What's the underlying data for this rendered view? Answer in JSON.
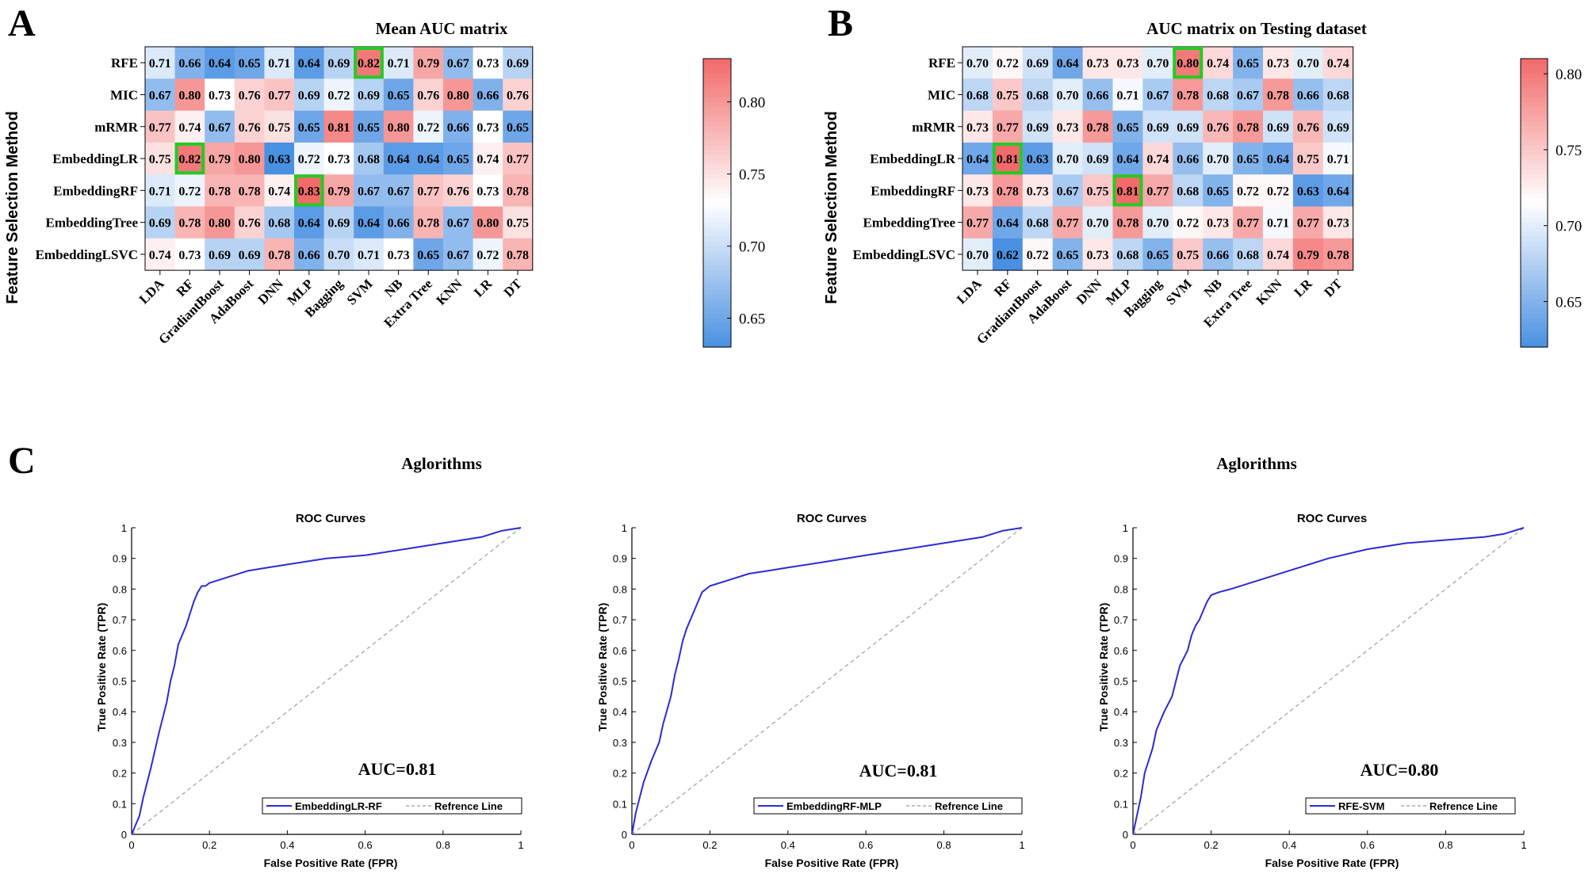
{
  "panel_letters": {
    "a": "A",
    "b": "B",
    "c": "C"
  },
  "colors": {
    "low": "#4a90e2",
    "mid": "#ffffff",
    "high": "#f26a6a",
    "highlight": "#22cc22",
    "roc": "#2b2bd6",
    "reference": "#aaaaaa"
  },
  "chart_data": [
    {
      "type": "heatmap",
      "panel": "A",
      "title": "Mean AUC matrix",
      "xlabel": "Aglorithms",
      "ylabel": "Feature Selection Method",
      "x": [
        "LDA",
        "RF",
        "GradiantBoost",
        "AdaBoost",
        "DNN",
        "MLP",
        "Bagging",
        "SVM",
        "NB",
        "Extra Tree",
        "KNN",
        "LR",
        "DT"
      ],
      "y": [
        "RFE",
        "MIC",
        "mRMR",
        "EmbeddingLR",
        "EmbeddingRF",
        "EmbeddingTree",
        "EmbeddingLSVC"
      ],
      "values": [
        [
          0.71,
          0.66,
          0.64,
          0.65,
          0.71,
          0.64,
          0.69,
          0.82,
          0.71,
          0.79,
          0.67,
          0.73,
          0.69
        ],
        [
          0.67,
          0.8,
          0.73,
          0.76,
          0.77,
          0.69,
          0.72,
          0.69,
          0.65,
          0.76,
          0.8,
          0.66,
          0.76
        ],
        [
          0.77,
          0.74,
          0.67,
          0.76,
          0.75,
          0.65,
          0.81,
          0.65,
          0.8,
          0.72,
          0.66,
          0.73,
          0.65
        ],
        [
          0.75,
          0.82,
          0.79,
          0.8,
          0.63,
          0.72,
          0.73,
          0.68,
          0.64,
          0.64,
          0.65,
          0.74,
          0.77
        ],
        [
          0.71,
          0.72,
          0.78,
          0.78,
          0.74,
          0.83,
          0.79,
          0.67,
          0.67,
          0.77,
          0.76,
          0.73,
          0.78
        ],
        [
          0.69,
          0.78,
          0.8,
          0.76,
          0.68,
          0.64,
          0.69,
          0.64,
          0.66,
          0.78,
          0.67,
          0.8,
          0.75
        ],
        [
          0.74,
          0.73,
          0.69,
          0.69,
          0.78,
          0.66,
          0.7,
          0.71,
          0.73,
          0.65,
          0.67,
          0.72,
          0.78
        ]
      ],
      "highlights": [
        [
          0,
          7
        ],
        [
          3,
          1
        ],
        [
          4,
          5
        ]
      ],
      "color_range": [
        0.63,
        0.83
      ],
      "colorbar_ticks": [
        0.65,
        0.7,
        0.75,
        0.8
      ]
    },
    {
      "type": "heatmap",
      "panel": "B",
      "title": "AUC matrix on Testing dataset",
      "xlabel": "Aglorithms",
      "ylabel": "Feature Selection Method",
      "x": [
        "LDA",
        "RF",
        "GradiantBoost",
        "AdaBoost",
        "DNN",
        "MLP",
        "Bagging",
        "SVM",
        "NB",
        "Extra Tree",
        "KNN",
        "LR",
        "DT"
      ],
      "y": [
        "RFE",
        "MIC",
        "mRMR",
        "EmbeddingLR",
        "EmbeddingRF",
        "EmbeddingTree",
        "EmbeddingLSVC"
      ],
      "values": [
        [
          0.7,
          0.72,
          0.69,
          0.64,
          0.73,
          0.73,
          0.7,
          0.8,
          0.74,
          0.65,
          0.73,
          0.7,
          0.74
        ],
        [
          0.68,
          0.75,
          0.68,
          0.7,
          0.66,
          0.71,
          0.67,
          0.78,
          0.68,
          0.67,
          0.78,
          0.66,
          0.68
        ],
        [
          0.73,
          0.77,
          0.69,
          0.73,
          0.78,
          0.65,
          0.69,
          0.69,
          0.76,
          0.78,
          0.69,
          0.76,
          0.69
        ],
        [
          0.64,
          0.81,
          0.63,
          0.7,
          0.69,
          0.64,
          0.74,
          0.66,
          0.7,
          0.65,
          0.64,
          0.75,
          0.71
        ],
        [
          0.73,
          0.78,
          0.73,
          0.67,
          0.75,
          0.81,
          0.77,
          0.68,
          0.65,
          0.72,
          0.72,
          0.63,
          0.64
        ],
        [
          0.77,
          0.64,
          0.68,
          0.77,
          0.7,
          0.78,
          0.7,
          0.72,
          0.73,
          0.77,
          0.71,
          0.77,
          0.73
        ],
        [
          0.7,
          0.62,
          0.72,
          0.65,
          0.73,
          0.68,
          0.65,
          0.75,
          0.66,
          0.68,
          0.74,
          0.79,
          0.78
        ]
      ],
      "highlights": [
        [
          0,
          7
        ],
        [
          3,
          1
        ],
        [
          4,
          5
        ]
      ],
      "color_range": [
        0.62,
        0.81
      ],
      "colorbar_ticks": [
        0.65,
        0.7,
        0.75,
        0.8
      ]
    },
    {
      "type": "line",
      "panel": "C1",
      "title": "ROC Curves",
      "xlabel": "False Positive Rate (FPR)",
      "ylabel": "True Positive Rate (TPR)",
      "xlim": [
        0,
        1
      ],
      "ylim": [
        0,
        1
      ],
      "ticks": [
        "0",
        "0.1",
        "0.2",
        "0.3",
        "0.4",
        "0.5",
        "0.6",
        "0.7",
        "0.8",
        "0.9",
        "1"
      ],
      "xticks": [
        "0",
        "0.2",
        "0.4",
        "0.6",
        "0.8",
        "1"
      ],
      "annotation": "AUC=0.81",
      "legend": {
        "model": "EmbeddingLR-RF",
        "reference": "Refrence Line"
      },
      "series": [
        {
          "name": "EmbeddingLR-RF",
          "x": [
            0,
            0.01,
            0.02,
            0.03,
            0.05,
            0.07,
            0.09,
            0.1,
            0.11,
            0.12,
            0.13,
            0.14,
            0.15,
            0.16,
            0.17,
            0.18,
            0.19,
            0.2,
            0.25,
            0.3,
            0.35,
            0.4,
            0.5,
            0.6,
            0.7,
            0.8,
            0.9,
            0.95,
            1.0
          ],
          "y": [
            0,
            0.03,
            0.06,
            0.12,
            0.22,
            0.33,
            0.43,
            0.5,
            0.55,
            0.62,
            0.65,
            0.68,
            0.72,
            0.76,
            0.79,
            0.81,
            0.81,
            0.82,
            0.84,
            0.86,
            0.87,
            0.88,
            0.9,
            0.91,
            0.93,
            0.95,
            0.97,
            0.99,
            1.0
          ]
        },
        {
          "name": "Refrence Line",
          "x": [
            0,
            1
          ],
          "y": [
            0,
            1
          ]
        }
      ]
    },
    {
      "type": "line",
      "panel": "C2",
      "title": "ROC Curves",
      "xlabel": "False Positive Rate (FPR)",
      "ylabel": "True Positive Rate (TPR)",
      "xlim": [
        0,
        1
      ],
      "ylim": [
        0,
        1
      ],
      "ticks": [
        "0",
        "0.1",
        "0.2",
        "0.3",
        "0.4",
        "0.5",
        "0.6",
        "0.7",
        "0.8",
        "0.9",
        "1"
      ],
      "xticks": [
        "0",
        "0.2",
        "0.4",
        "0.6",
        "0.8",
        "1"
      ],
      "annotation": "AUC=0.81",
      "legend": {
        "model": "EmbeddingRF-MLP",
        "reference": "Refrence Line"
      },
      "series": [
        {
          "name": "EmbeddingRF-MLP",
          "x": [
            0,
            0.01,
            0.02,
            0.03,
            0.05,
            0.07,
            0.08,
            0.1,
            0.11,
            0.12,
            0.13,
            0.14,
            0.15,
            0.16,
            0.17,
            0.18,
            0.19,
            0.2,
            0.25,
            0.3,
            0.35,
            0.4,
            0.5,
            0.6,
            0.7,
            0.8,
            0.9,
            0.95,
            1.0
          ],
          "y": [
            0,
            0.07,
            0.12,
            0.17,
            0.24,
            0.3,
            0.36,
            0.45,
            0.52,
            0.57,
            0.63,
            0.67,
            0.7,
            0.73,
            0.76,
            0.79,
            0.8,
            0.81,
            0.83,
            0.85,
            0.86,
            0.87,
            0.89,
            0.91,
            0.93,
            0.95,
            0.97,
            0.99,
            1.0
          ]
        },
        {
          "name": "Refrence Line",
          "x": [
            0,
            1
          ],
          "y": [
            0,
            1
          ]
        }
      ]
    },
    {
      "type": "line",
      "panel": "C3",
      "title": "ROC Curves",
      "xlabel": "False Positive Rate (FPR)",
      "ylabel": "True Positive Rate (TPR)",
      "xlim": [
        0,
        1
      ],
      "ylim": [
        0,
        1
      ],
      "ticks": [
        "0",
        "0.1",
        "0.2",
        "0.3",
        "0.4",
        "0.5",
        "0.6",
        "0.7",
        "0.8",
        "0.9",
        "1"
      ],
      "xticks": [
        "0",
        "0.2",
        "0.4",
        "0.6",
        "0.8",
        "1"
      ],
      "annotation": "AUC=0.80",
      "legend": {
        "model": "RFE-SVM",
        "reference": "Refrence Line"
      },
      "series": [
        {
          "name": "RFE-SVM",
          "x": [
            0,
            0.01,
            0.02,
            0.03,
            0.05,
            0.06,
            0.08,
            0.1,
            0.11,
            0.12,
            0.14,
            0.15,
            0.16,
            0.17,
            0.18,
            0.19,
            0.2,
            0.22,
            0.25,
            0.3,
            0.35,
            0.4,
            0.5,
            0.6,
            0.7,
            0.8,
            0.9,
            0.95,
            1.0
          ],
          "y": [
            0,
            0.06,
            0.12,
            0.2,
            0.28,
            0.34,
            0.4,
            0.45,
            0.5,
            0.55,
            0.6,
            0.65,
            0.68,
            0.7,
            0.73,
            0.76,
            0.78,
            0.79,
            0.8,
            0.82,
            0.84,
            0.86,
            0.9,
            0.93,
            0.95,
            0.96,
            0.97,
            0.98,
            1.0
          ]
        },
        {
          "name": "Refrence Line",
          "x": [
            0,
            1
          ],
          "y": [
            0,
            1
          ]
        }
      ]
    }
  ]
}
